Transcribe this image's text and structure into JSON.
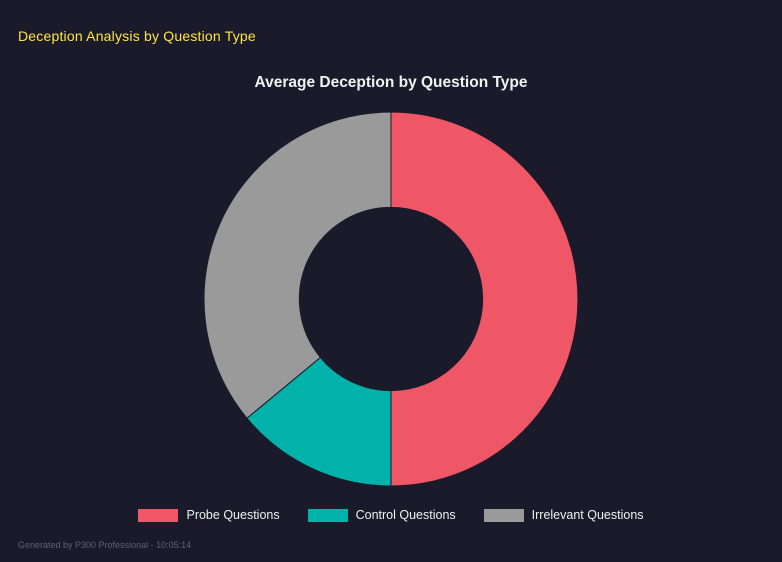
{
  "page": {
    "title": "Deception Analysis by Question Type"
  },
  "footer": {
    "text": "Generated by P300 Professional - 10:05:14"
  },
  "colors": {
    "background": "#1a1a2b",
    "page_title": "#ffe53e",
    "chart_title": "#f2f2f2",
    "footer_text": "#606072"
  },
  "chart_data": {
    "type": "pie",
    "subtype": "doughnut",
    "title": "Average Deception by Question Type",
    "labels": [
      "Probe Questions",
      "Control Questions",
      "Irrelevant Questions"
    ],
    "values": [
      50,
      14,
      36
    ],
    "colors": [
      "#ef5767",
      "#00b2a9",
      "#9a9a9a"
    ],
    "legend_position": "bottom",
    "start_angle": 0,
    "direction": "clockwise",
    "donut_hole_ratio": 0.49,
    "grid": false
  }
}
